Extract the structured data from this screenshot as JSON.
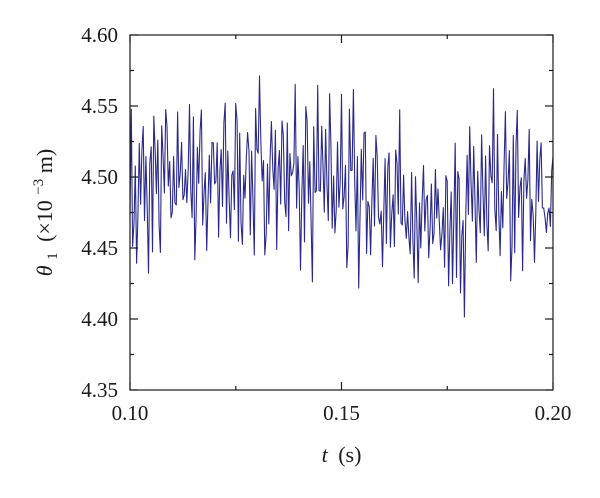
{
  "chart_data": {
    "type": "line",
    "title": "",
    "xlabel": {
      "var": "t",
      "unit": "(s)"
    },
    "ylabel": {
      "var": "θ",
      "sub": "1",
      "prefix": "(×10",
      "exp": "−3",
      "suffix": "m)"
    },
    "xlim": [
      0.1,
      0.2
    ],
    "ylim": [
      4.35,
      4.6
    ],
    "xticks": [
      0.1,
      0.15,
      0.2
    ],
    "xtick_labels": [
      "0.10",
      "0.15",
      "0.20"
    ],
    "yticks": [
      4.35,
      4.4,
      4.45,
      4.5,
      4.55,
      4.6
    ],
    "ytick_labels": [
      "4.35",
      "4.40",
      "4.45",
      "4.50",
      "4.55",
      "4.60"
    ],
    "grid": false,
    "series": [
      {
        "color": "#2b2a8c",
        "envelope": {
          "x": [
            0.1,
            0.105,
            0.11,
            0.115,
            0.12,
            0.125,
            0.13,
            0.135,
            0.14,
            0.145,
            0.15,
            0.155,
            0.16,
            0.165,
            0.17,
            0.175,
            0.18,
            0.185,
            0.19,
            0.195,
            0.2
          ],
          "upper": [
            4.54,
            4.555,
            4.56,
            4.56,
            4.555,
            4.555,
            4.56,
            4.565,
            4.56,
            4.56,
            4.555,
            4.55,
            4.545,
            4.535,
            4.53,
            4.535,
            4.54,
            4.545,
            4.545,
            4.545,
            4.545
          ],
          "lower": [
            4.425,
            4.43,
            4.44,
            4.445,
            4.44,
            4.445,
            4.445,
            4.445,
            4.44,
            4.435,
            4.43,
            4.425,
            4.425,
            4.42,
            4.415,
            4.41,
            4.415,
            4.42,
            4.425,
            4.425,
            4.43
          ],
          "peak_max": 4.59,
          "trough_min": 4.395
        }
      }
    ]
  }
}
